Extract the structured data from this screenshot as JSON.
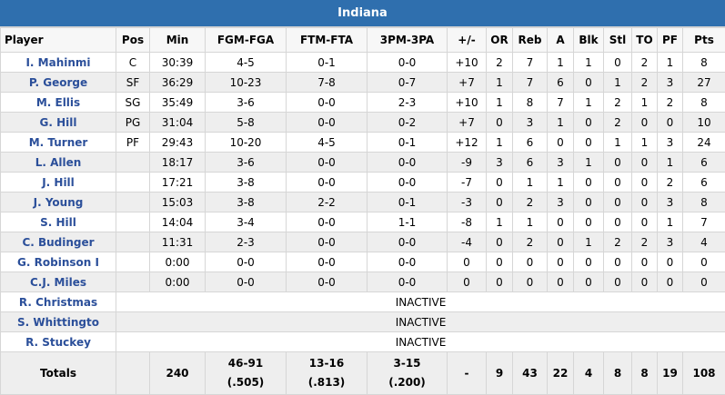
{
  "team": "Indiana",
  "columns": [
    "Player",
    "Pos",
    "Min",
    "FGM-FGA",
    "FTM-FTA",
    "3PM-3PA",
    "+/-",
    "OR",
    "Reb",
    "A",
    "Blk",
    "Stl",
    "TO",
    "PF",
    "Pts"
  ],
  "players": [
    {
      "name": "I. Mahinmi",
      "pos": "C",
      "min": "30:39",
      "fg": "4-5",
      "ft": "0-1",
      "tp": "0-0",
      "pm": "+10",
      "or": "2",
      "reb": "7",
      "a": "1",
      "blk": "1",
      "stl": "0",
      "to": "2",
      "pf": "1",
      "pts": "8"
    },
    {
      "name": "P. George",
      "pos": "SF",
      "min": "36:29",
      "fg": "10-23",
      "ft": "7-8",
      "tp": "0-7",
      "pm": "+7",
      "or": "1",
      "reb": "7",
      "a": "6",
      "blk": "0",
      "stl": "1",
      "to": "2",
      "pf": "3",
      "pts": "27"
    },
    {
      "name": "M. Ellis",
      "pos": "SG",
      "min": "35:49",
      "fg": "3-6",
      "ft": "0-0",
      "tp": "2-3",
      "pm": "+10",
      "or": "1",
      "reb": "8",
      "a": "7",
      "blk": "1",
      "stl": "2",
      "to": "1",
      "pf": "2",
      "pts": "8"
    },
    {
      "name": "G. Hill",
      "pos": "PG",
      "min": "31:04",
      "fg": "5-8",
      "ft": "0-0",
      "tp": "0-2",
      "pm": "+7",
      "or": "0",
      "reb": "3",
      "a": "1",
      "blk": "0",
      "stl": "2",
      "to": "0",
      "pf": "0",
      "pts": "10"
    },
    {
      "name": "M. Turner",
      "pos": "PF",
      "min": "29:43",
      "fg": "10-20",
      "ft": "4-5",
      "tp": "0-1",
      "pm": "+12",
      "or": "1",
      "reb": "6",
      "a": "0",
      "blk": "0",
      "stl": "1",
      "to": "1",
      "pf": "3",
      "pts": "24"
    },
    {
      "name": "L. Allen",
      "pos": "",
      "min": "18:17",
      "fg": "3-6",
      "ft": "0-0",
      "tp": "0-0",
      "pm": "-9",
      "or": "3",
      "reb": "6",
      "a": "3",
      "blk": "1",
      "stl": "0",
      "to": "0",
      "pf": "1",
      "pts": "6"
    },
    {
      "name": "J. Hill",
      "pos": "",
      "min": "17:21",
      "fg": "3-8",
      "ft": "0-0",
      "tp": "0-0",
      "pm": "-7",
      "or": "0",
      "reb": "1",
      "a": "1",
      "blk": "0",
      "stl": "0",
      "to": "0",
      "pf": "2",
      "pts": "6"
    },
    {
      "name": "J. Young",
      "pos": "",
      "min": "15:03",
      "fg": "3-8",
      "ft": "2-2",
      "tp": "0-1",
      "pm": "-3",
      "or": "0",
      "reb": "2",
      "a": "3",
      "blk": "0",
      "stl": "0",
      "to": "0",
      "pf": "3",
      "pts": "8"
    },
    {
      "name": "S. Hill",
      "pos": "",
      "min": "14:04",
      "fg": "3-4",
      "ft": "0-0",
      "tp": "1-1",
      "pm": "-8",
      "or": "1",
      "reb": "1",
      "a": "0",
      "blk": "0",
      "stl": "0",
      "to": "0",
      "pf": "1",
      "pts": "7"
    },
    {
      "name": "C. Budinger",
      "pos": "",
      "min": "11:31",
      "fg": "2-3",
      "ft": "0-0",
      "tp": "0-0",
      "pm": "-4",
      "or": "0",
      "reb": "2",
      "a": "0",
      "blk": "1",
      "stl": "2",
      "to": "2",
      "pf": "3",
      "pts": "4"
    },
    {
      "name": "G. Robinson I",
      "pos": "",
      "min": "0:00",
      "fg": "0-0",
      "ft": "0-0",
      "tp": "0-0",
      "pm": "0",
      "or": "0",
      "reb": "0",
      "a": "0",
      "blk": "0",
      "stl": "0",
      "to": "0",
      "pf": "0",
      "pts": "0"
    },
    {
      "name": "C.J. Miles",
      "pos": "",
      "min": "0:00",
      "fg": "0-0",
      "ft": "0-0",
      "tp": "0-0",
      "pm": "0",
      "or": "0",
      "reb": "0",
      "a": "0",
      "blk": "0",
      "stl": "0",
      "to": "0",
      "pf": "0",
      "pts": "0"
    }
  ],
  "inactive": [
    {
      "name": "R. Christmas",
      "status": "INACTIVE"
    },
    {
      "name": "S. Whittingto",
      "status": "INACTIVE"
    },
    {
      "name": "R. Stuckey",
      "status": "INACTIVE"
    }
  ],
  "totals": {
    "label": "Totals",
    "pos": "",
    "min": "240",
    "fg": "46-91",
    "fg_pct": "(.505)",
    "ft": "13-16",
    "ft_pct": "(.813)",
    "tp": "3-15",
    "tp_pct": "(.200)",
    "pm": "-",
    "or": "9",
    "reb": "43",
    "a": "22",
    "blk": "4",
    "stl": "8",
    "to": "8",
    "pf": "19",
    "pts": "108"
  }
}
